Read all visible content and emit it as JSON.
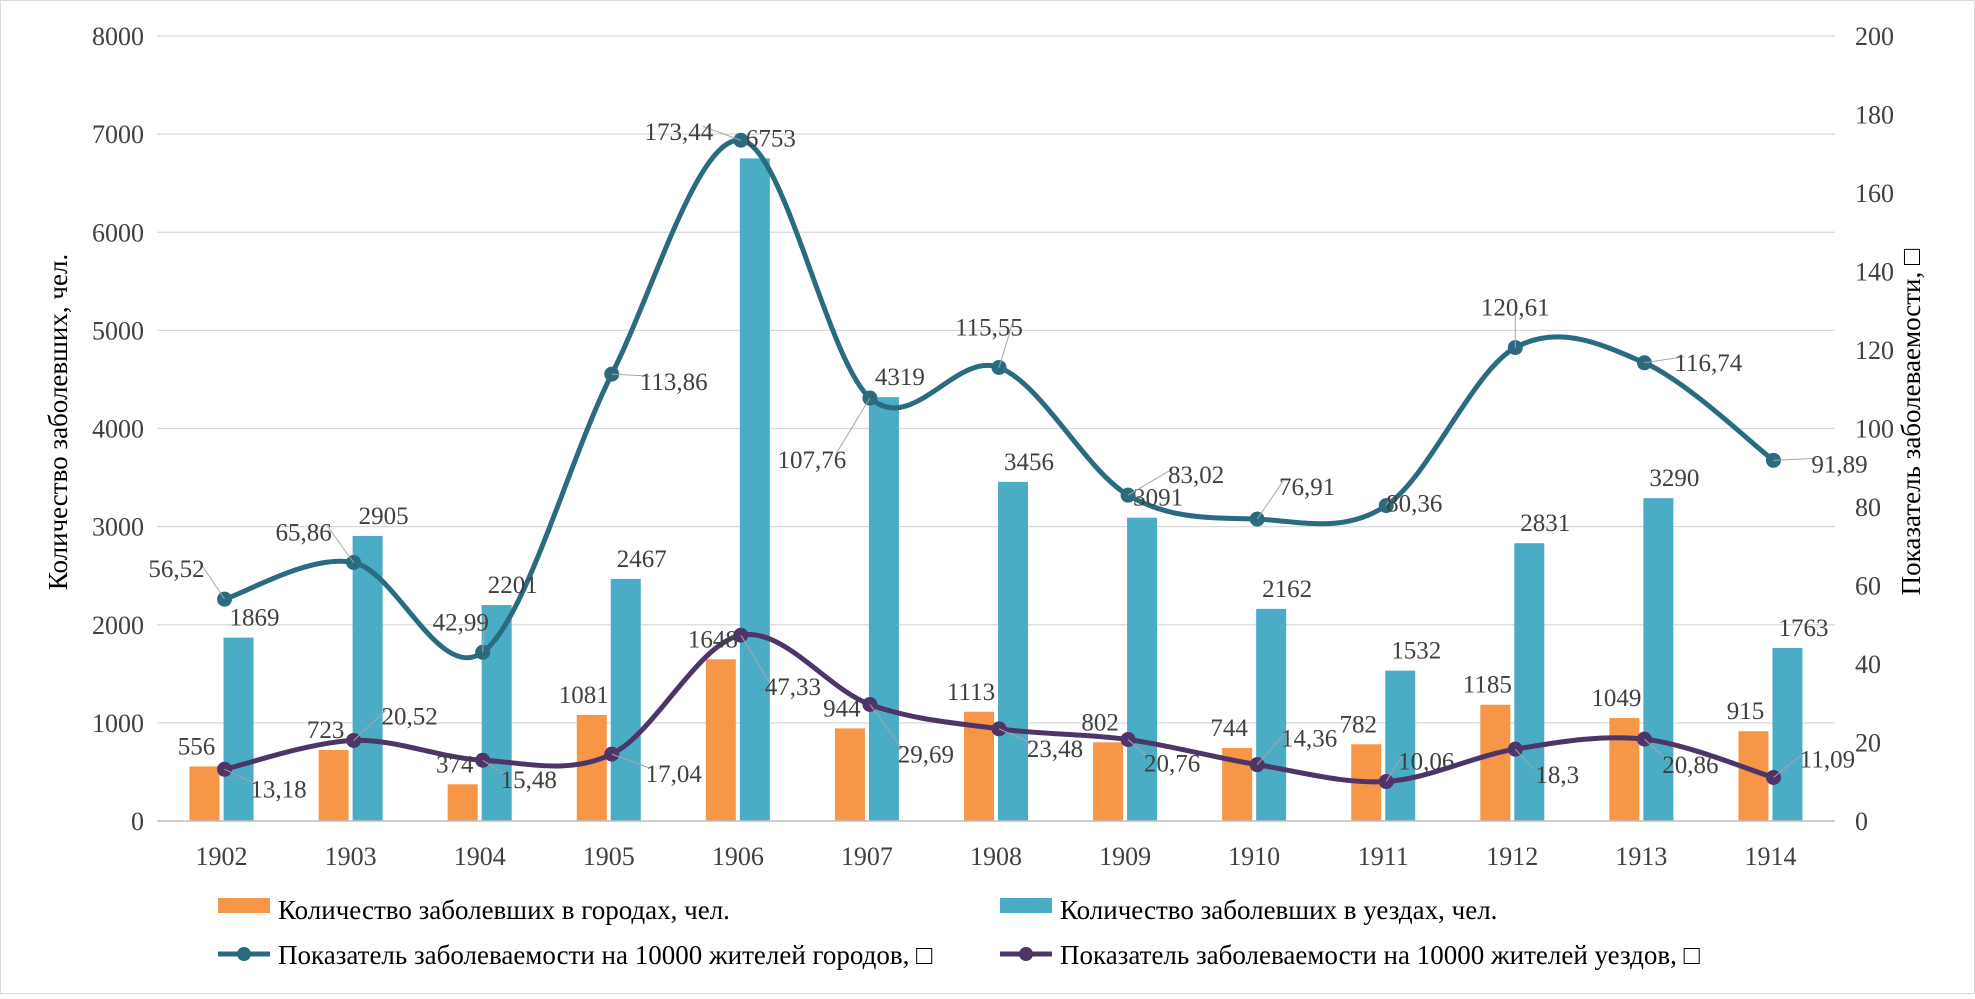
{
  "chart_data": {
    "type": "bar",
    "categories": [
      "1902",
      "1903",
      "1904",
      "1905",
      "1906",
      "1907",
      "1908",
      "1909",
      "1910",
      "1911",
      "1912",
      "1913",
      "1914"
    ],
    "ylabel": "Количество заболевших, чел.",
    "y2label": "Показатель заболеваемости, □",
    "ylim": [
      0,
      8000
    ],
    "y2lim": [
      0,
      200
    ],
    "yticks": [
      "0",
      "1000",
      "2000",
      "3000",
      "4000",
      "5000",
      "6000",
      "7000",
      "8000"
    ],
    "y2ticks": [
      "0",
      "20",
      "40",
      "60",
      "80",
      "100",
      "120",
      "140",
      "160",
      "180",
      "200"
    ],
    "grid": true,
    "legend_position": "bottom",
    "series": [
      {
        "name": "Количество заболевших в городах, чел.",
        "kind": "bar",
        "axis": "left",
        "color": "#F79646",
        "values": [
          556,
          723,
          374,
          1081,
          1648,
          944,
          1113,
          802,
          744,
          782,
          1185,
          1049,
          915
        ],
        "labels": [
          "556",
          "723",
          "374",
          "1081",
          "1648",
          "944",
          "1113",
          "802",
          "744",
          "782",
          "1185",
          "1049",
          "915"
        ]
      },
      {
        "name": "Количество заболевших в уездах, чел.",
        "kind": "bar",
        "axis": "left",
        "color": "#4BACC6",
        "values": [
          1869,
          2905,
          2201,
          2467,
          6753,
          4319,
          3456,
          3091,
          2162,
          1532,
          2831,
          3290,
          1763
        ],
        "labels": [
          "1869",
          "2905",
          "2201",
          "2467",
          "6753",
          "4319",
          "3456",
          "3091",
          "2162",
          "1532",
          "2831",
          "3290",
          "1763"
        ]
      },
      {
        "name": "Показатель заболеваемости на 10000 жителей городов, □",
        "kind": "line",
        "axis": "right",
        "color": "#2A6B80",
        "values": [
          56.52,
          65.86,
          42.99,
          113.86,
          173.44,
          107.76,
          115.55,
          83.02,
          76.91,
          80.36,
          120.61,
          116.74,
          91.89
        ],
        "labels": [
          "56,52",
          "65,86",
          "42,99",
          "113,86",
          "173,44",
          "107,76",
          "115,55",
          "83,02",
          "76,91",
          "80,36",
          "120,61",
          "116,74",
          "91,89"
        ]
      },
      {
        "name": "Показатель заболеваемости на 10000 жителей уездов, □",
        "kind": "line",
        "axis": "right",
        "color": "#4E3568",
        "values": [
          13.18,
          20.52,
          15.48,
          17.04,
          47.33,
          29.69,
          23.48,
          20.76,
          14.36,
          10.06,
          18.3,
          20.86,
          11.09
        ],
        "labels": [
          "13,18",
          "20,52",
          "15,48",
          "17,04",
          "47,33",
          "29,69",
          "23,48",
          "20,76",
          "14,36",
          "10,06",
          "18,3",
          "20,86",
          "11,09"
        ]
      }
    ]
  }
}
